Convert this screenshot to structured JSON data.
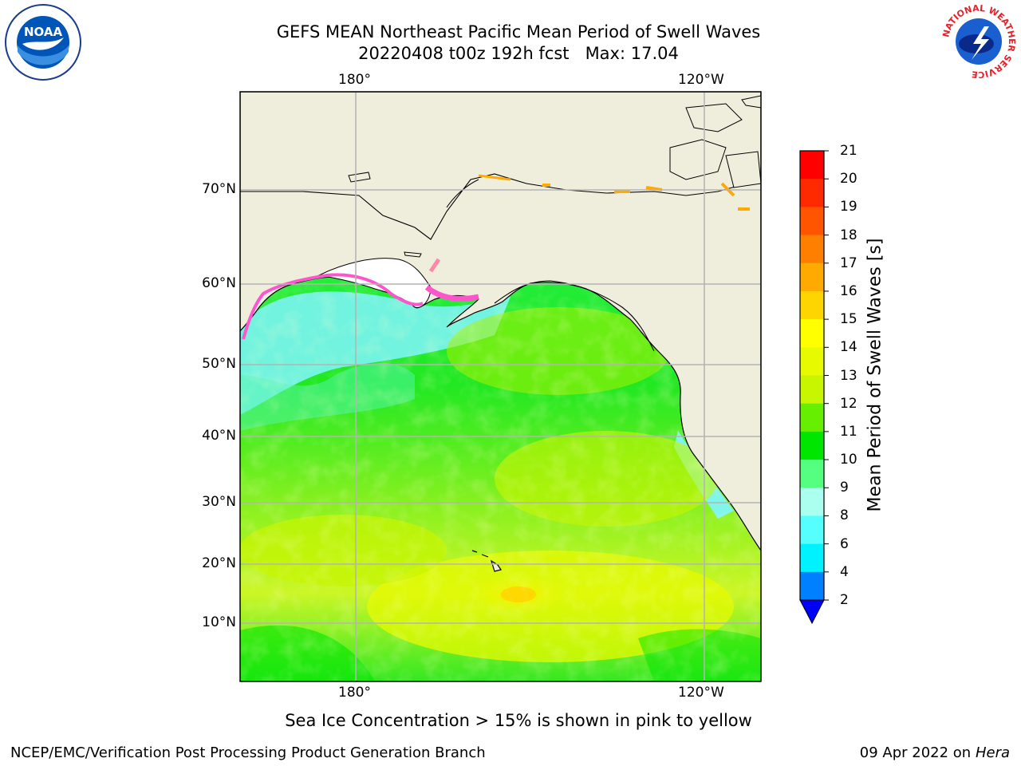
{
  "title": {
    "line1": "GEFS MEAN Northeast Pacific Mean Period of Swell Waves",
    "line2": "20220408 t00z 192h fcst   Max: 17.04"
  },
  "map": {
    "lon_labels_top": [
      "180°",
      "120°W"
    ],
    "lon_labels_bottom": [
      "180°",
      "120°W"
    ],
    "lat_labels": [
      "70°N",
      "60°N",
      "50°N",
      "40°N",
      "30°N",
      "20°N",
      "10°N"
    ],
    "colors": {
      "land": "#efeedd",
      "grid": "#b4b4b4",
      "ice": "#ff55cc",
      "cold": "#7ff5ff",
      "green": "#00ee00",
      "yellow": "#ddff22"
    }
  },
  "colorbar": {
    "label": "Mean Period of Swell Waves [s]",
    "ticks": [
      "21",
      "20",
      "19",
      "18",
      "17",
      "16",
      "15",
      "14",
      "13",
      "12",
      "11",
      "10",
      "9",
      "8",
      "6",
      "4",
      "2"
    ],
    "colors": [
      "#ff0000",
      "#ff2a00",
      "#ff5500",
      "#ff8000",
      "#ffaa00",
      "#ffd500",
      "#ffff00",
      "#e6fa00",
      "#c8f500",
      "#66f000",
      "#00e600",
      "#55ff80",
      "#aaffee",
      "#55ffff",
      "#00f2ff",
      "#0080ff"
    ],
    "extend_color": "#0000ff"
  },
  "note": "Sea Ice Concentration > 15% is shown in pink to yellow",
  "footer": {
    "left": "NCEP/EMC/Verification Post Processing Product Generation Branch",
    "right_date": "09 Apr 2022 on ",
    "right_host": "Hera"
  },
  "logos": {
    "noaa_text": "NOAA",
    "nws_text": "NATIONAL WEATHER SERVICE"
  }
}
